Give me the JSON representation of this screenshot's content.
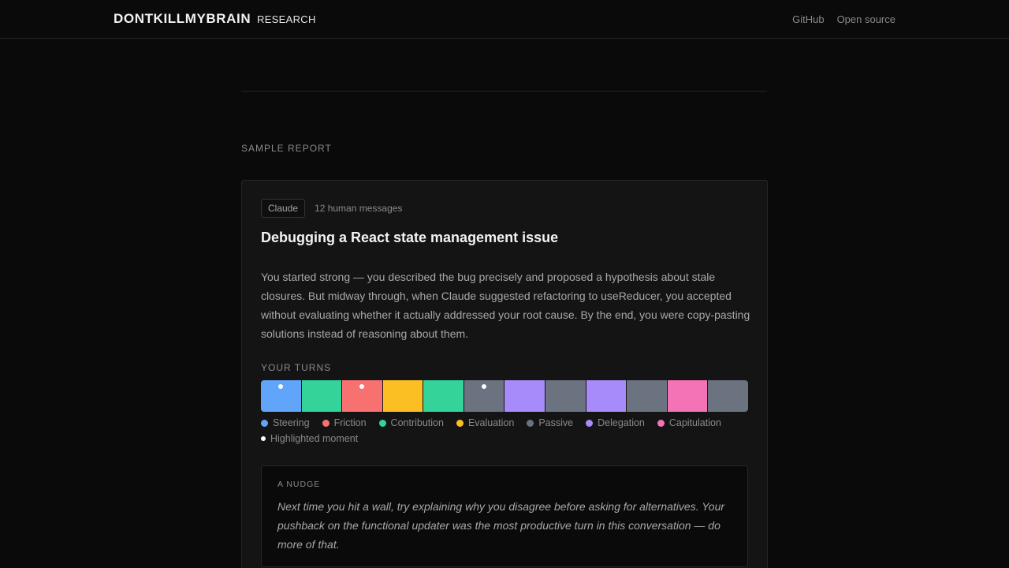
{
  "header": {
    "brand": "DONTKILLMYBRAIN",
    "nav_research": "RESEARCH",
    "links": [
      "GitHub",
      "Open source"
    ]
  },
  "section": {
    "label": "SAMPLE REPORT"
  },
  "report": {
    "model_badge": "Claude",
    "message_count": "12 human messages",
    "title": "Debugging a React state management issue",
    "summary": "You started strong — you described the bug precisely and proposed a hypothesis about stale closures. But midway through, when Claude suggested refactoring to useReducer, you accepted without evaluating whether it actually addressed your root cause. By the end, you were copy-pasting solutions instead of reasoning about them.",
    "turns_label": "YOUR TURNS",
    "turns": [
      {
        "category": "Steering",
        "highlighted": true
      },
      {
        "category": "Contribution",
        "highlighted": false
      },
      {
        "category": "Friction",
        "highlighted": true
      },
      {
        "category": "Evaluation",
        "highlighted": false
      },
      {
        "category": "Contribution",
        "highlighted": false
      },
      {
        "category": "Passive",
        "highlighted": true
      },
      {
        "category": "Delegation",
        "highlighted": false
      },
      {
        "category": "Passive",
        "highlighted": false
      },
      {
        "category": "Delegation",
        "highlighted": false
      },
      {
        "category": "Passive",
        "highlighted": false
      },
      {
        "category": "Capitulation",
        "highlighted": false
      },
      {
        "category": "Passive",
        "highlighted": false
      }
    ],
    "legend": [
      {
        "label": "Steering",
        "color": "#60a5fa"
      },
      {
        "label": "Friction",
        "color": "#f87171"
      },
      {
        "label": "Contribution",
        "color": "#34d399"
      },
      {
        "label": "Evaluation",
        "color": "#fbbf24"
      },
      {
        "label": "Passive",
        "color": "#6b7280"
      },
      {
        "label": "Delegation",
        "color": "#a78bfa"
      },
      {
        "label": "Capitulation",
        "color": "#f472b6"
      }
    ],
    "highlight_legend": "Highlighted moment",
    "nudge": {
      "label": "A NUDGE",
      "text": "Next time you hit a wall, try explaining why you disagree before asking for alternatives. Your pushback on the functional updater was the most productive turn in this conversation — do more of that."
    }
  }
}
